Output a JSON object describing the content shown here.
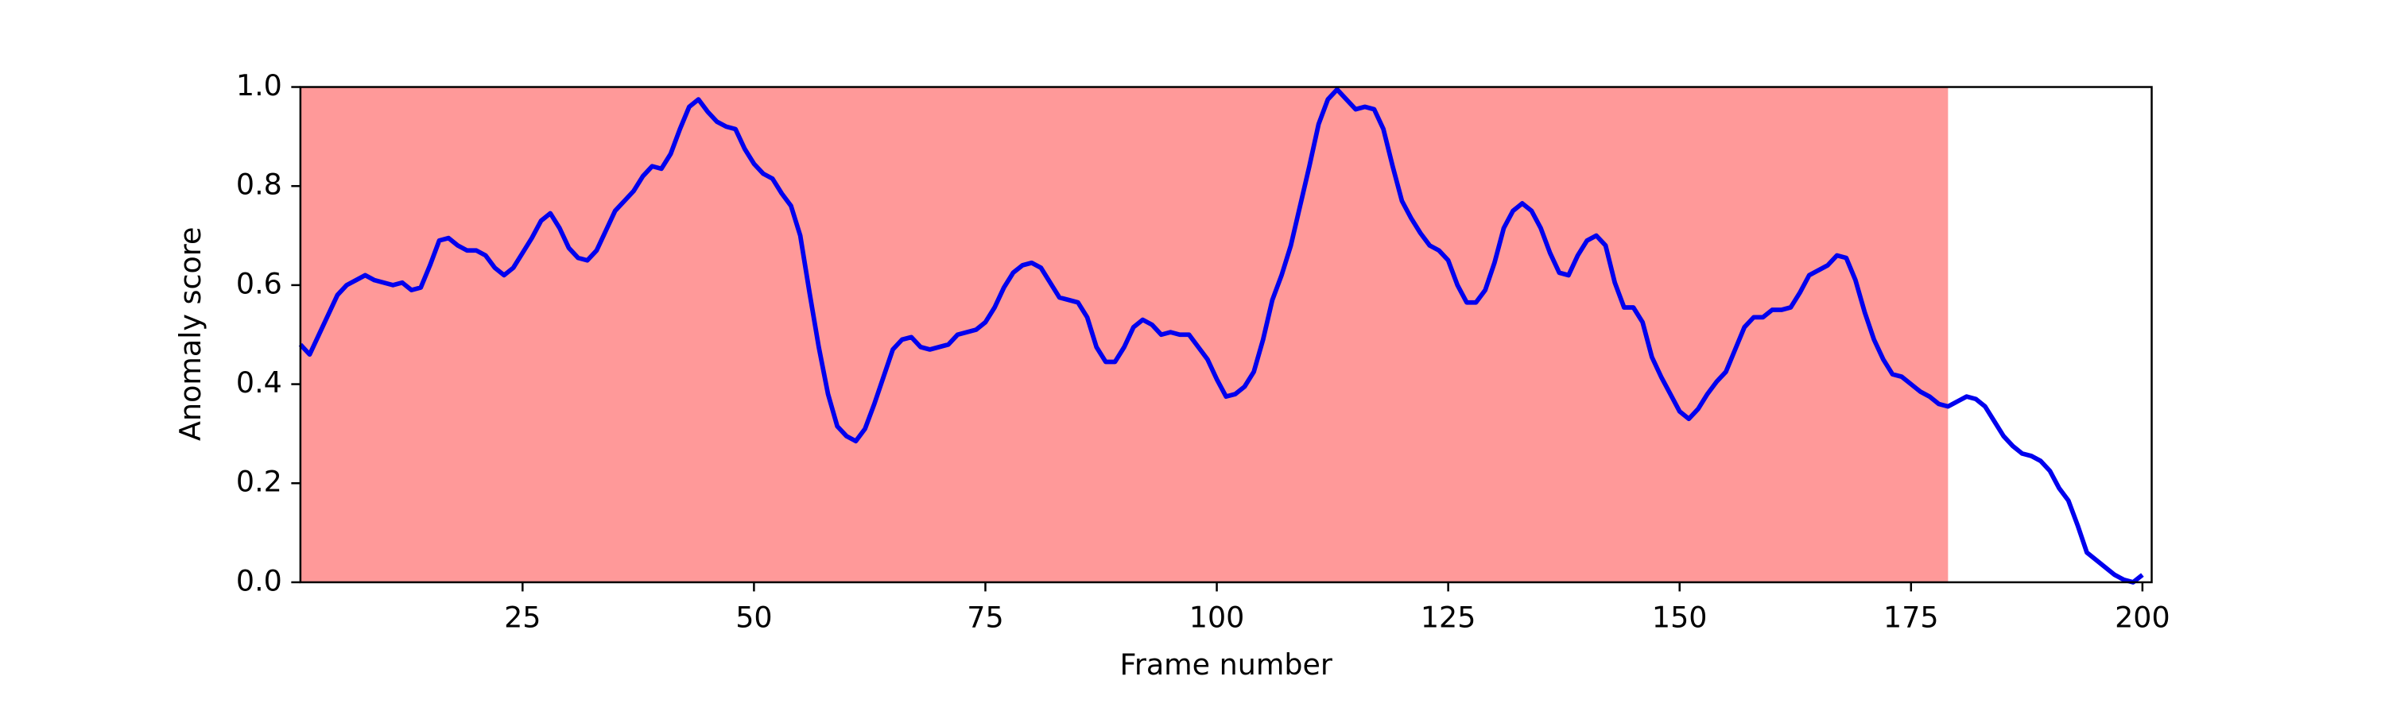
{
  "chart_data": {
    "type": "line",
    "xlabel": "Frame number",
    "ylabel": "Anomaly score",
    "xlim": [
      1,
      201
    ],
    "ylim": [
      0,
      1
    ],
    "xticks": [
      25,
      50,
      75,
      100,
      125,
      150,
      175,
      200
    ],
    "yticks": [
      {
        "value": 0,
        "label": "0.0"
      },
      {
        "value": 0.2,
        "label": "0.2"
      },
      {
        "value": 0.4,
        "label": "0.4"
      },
      {
        "value": 0.6,
        "label": "0.6"
      },
      {
        "value": 0.8,
        "label": "0.8"
      },
      {
        "value": 1,
        "label": "1.0"
      }
    ],
    "highlight_span": [
      1,
      179
    ],
    "highlight_color": "#ff9999",
    "grid": false,
    "x": [
      1,
      2,
      3,
      4,
      5,
      6,
      7,
      8,
      9,
      10,
      11,
      12,
      13,
      14,
      15,
      16,
      17,
      18,
      19,
      20,
      21,
      22,
      23,
      24,
      25,
      26,
      27,
      28,
      29,
      30,
      31,
      32,
      33,
      34,
      35,
      36,
      37,
      38,
      39,
      40,
      41,
      42,
      43,
      44,
      45,
      46,
      47,
      48,
      49,
      50,
      51,
      52,
      53,
      54,
      55,
      56,
      57,
      58,
      59,
      60,
      61,
      62,
      63,
      64,
      65,
      66,
      67,
      68,
      69,
      70,
      71,
      72,
      73,
      74,
      75,
      76,
      77,
      78,
      79,
      80,
      81,
      82,
      83,
      84,
      85,
      86,
      87,
      88,
      89,
      90,
      91,
      92,
      93,
      94,
      95,
      96,
      97,
      98,
      99,
      100,
      101,
      102,
      103,
      104,
      105,
      106,
      107,
      108,
      109,
      110,
      111,
      112,
      113,
      114,
      115,
      116,
      117,
      118,
      119,
      120,
      121,
      122,
      123,
      124,
      125,
      126,
      127,
      128,
      129,
      130,
      131,
      132,
      133,
      134,
      135,
      136,
      137,
      138,
      139,
      140,
      141,
      142,
      143,
      144,
      145,
      146,
      147,
      148,
      149,
      150,
      151,
      152,
      153,
      154,
      155,
      156,
      157,
      158,
      159,
      160,
      161,
      162,
      163,
      164,
      165,
      166,
      167,
      168,
      169,
      170,
      171,
      172,
      173,
      174,
      175,
      176,
      177,
      178,
      179,
      180,
      181,
      182,
      183,
      184,
      185,
      186,
      187,
      188,
      189,
      190,
      191,
      192,
      193,
      194,
      195,
      196,
      197,
      198,
      199,
      200
    ],
    "series": [
      {
        "name": "Anomaly score",
        "color": "#0000ee",
        "values": [
          0.48,
          0.46,
          0.5,
          0.54,
          0.58,
          0.6,
          0.61,
          0.62,
          0.61,
          0.605,
          0.6,
          0.605,
          0.59,
          0.595,
          0.64,
          0.69,
          0.695,
          0.68,
          0.67,
          0.67,
          0.66,
          0.635,
          0.62,
          0.635,
          0.665,
          0.695,
          0.73,
          0.745,
          0.715,
          0.675,
          0.655,
          0.65,
          0.67,
          0.71,
          0.75,
          0.77,
          0.79,
          0.82,
          0.84,
          0.835,
          0.865,
          0.915,
          0.96,
          0.975,
          0.95,
          0.93,
          0.92,
          0.915,
          0.875,
          0.845,
          0.825,
          0.815,
          0.785,
          0.76,
          0.7,
          0.585,
          0.475,
          0.38,
          0.315,
          0.295,
          0.285,
          0.31,
          0.36,
          0.415,
          0.47,
          0.49,
          0.495,
          0.475,
          0.47,
          0.475,
          0.48,
          0.5,
          0.505,
          0.51,
          0.525,
          0.555,
          0.595,
          0.625,
          0.64,
          0.645,
          0.635,
          0.605,
          0.575,
          0.57,
          0.565,
          0.535,
          0.475,
          0.445,
          0.445,
          0.475,
          0.515,
          0.53,
          0.52,
          0.5,
          0.505,
          0.5,
          0.5,
          0.475,
          0.45,
          0.41,
          0.375,
          0.38,
          0.395,
          0.425,
          0.49,
          0.57,
          0.62,
          0.68,
          0.76,
          0.84,
          0.925,
          0.975,
          0.995,
          0.975,
          0.955,
          0.96,
          0.955,
          0.915,
          0.84,
          0.77,
          0.735,
          0.705,
          0.68,
          0.67,
          0.65,
          0.6,
          0.565,
          0.565,
          0.59,
          0.645,
          0.715,
          0.75,
          0.765,
          0.75,
          0.715,
          0.665,
          0.625,
          0.62,
          0.66,
          0.69,
          0.7,
          0.68,
          0.605,
          0.555,
          0.555,
          0.525,
          0.455,
          0.415,
          0.38,
          0.345,
          0.33,
          0.35,
          0.38,
          0.405,
          0.425,
          0.47,
          0.515,
          0.535,
          0.535,
          0.55,
          0.55,
          0.555,
          0.585,
          0.62,
          0.63,
          0.64,
          0.66,
          0.655,
          0.61,
          0.545,
          0.49,
          0.45,
          0.42,
          0.415,
          0.4,
          0.385,
          0.375,
          0.36,
          0.355,
          0.365,
          0.375,
          0.37,
          0.355,
          0.325,
          0.295,
          0.275,
          0.26,
          0.255,
          0.245,
          0.225,
          0.19,
          0.165,
          0.115,
          0.06,
          0.045,
          0.03,
          0.015,
          0.005,
          0.0,
          0.015
        ]
      }
    ]
  }
}
